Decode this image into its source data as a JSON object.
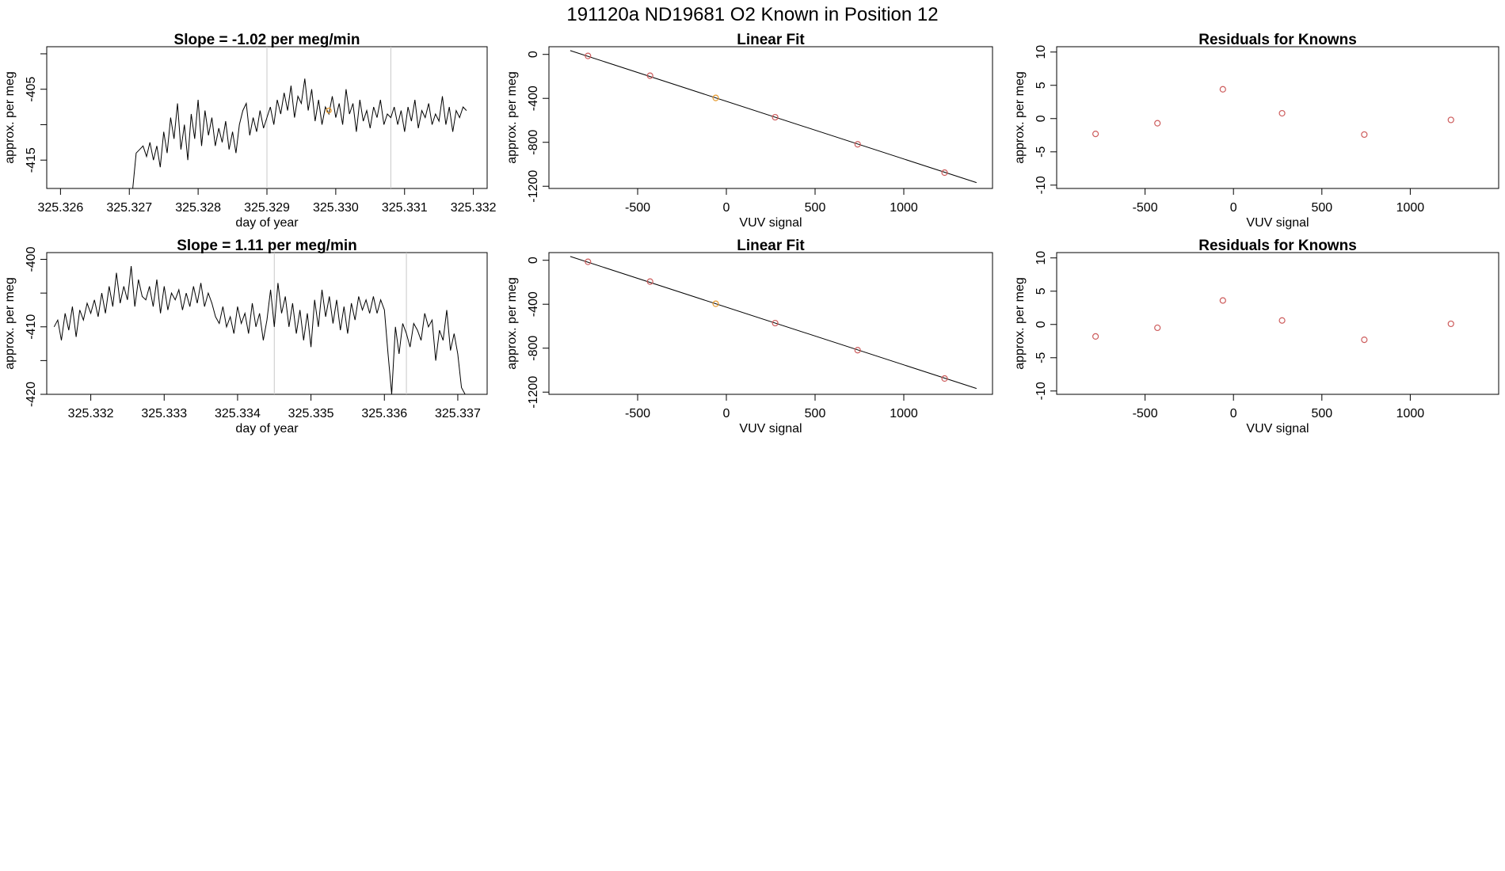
{
  "page_title": "191120a     ND19681   O2 Known in Position  12",
  "colors": {
    "trace": "#000000",
    "point": "#cd5c5c",
    "highlight": "#e69a2e",
    "marker_line": "#c8c8c8",
    "fit_line": "#000000"
  },
  "chart_data": [
    {
      "type": "line",
      "title": "Slope =  -1.02  per meg/min",
      "xlabel": "day of year",
      "ylabel": "approx. per meg",
      "xlim": [
        325.3258,
        325.3322
      ],
      "ylim": [
        -419,
        -399
      ],
      "x_ticks": [
        325.326,
        325.327,
        325.328,
        325.329,
        325.33,
        325.331,
        325.332
      ],
      "x_tick_labels": [
        "325.326",
        "325.327",
        "325.328",
        "325.329",
        "325.330",
        "325.331",
        "325.332"
      ],
      "y_ticks": [
        -415,
        -410,
        -405,
        -400
      ],
      "y_tick_labels": [
        "-415",
        "",
        "-405",
        ""
      ],
      "markers_x": [
        325.329,
        325.3308
      ],
      "highlight": {
        "x": 325.3299,
        "y": -408
      },
      "series": [
        {
          "x": [
            325.32705,
            325.3271,
            325.32715,
            325.3272,
            325.32725,
            325.3273,
            325.32735,
            325.3274,
            325.32745,
            325.3275,
            325.32755,
            325.3276,
            325.32765,
            325.3277,
            325.32775,
            325.3278,
            325.32785,
            325.3279,
            325.32795,
            325.328,
            325.32805,
            325.3281,
            325.32815,
            325.3282,
            325.32825,
            325.3283,
            325.32835,
            325.3284,
            325.32845,
            325.3285,
            325.32855,
            325.3286,
            325.32865,
            325.3287,
            325.32875,
            325.3288,
            325.32885,
            325.3289,
            325.32895,
            325.329,
            325.32905,
            325.3291,
            325.32915,
            325.3292,
            325.32925,
            325.3293,
            325.32935,
            325.3294,
            325.32945,
            325.3295,
            325.32955,
            325.3296,
            325.32965,
            325.3297,
            325.32975,
            325.3298,
            325.32985,
            325.3299,
            325.32995,
            325.33,
            325.33005,
            325.3301,
            325.33015,
            325.3302,
            325.33025,
            325.3303,
            325.33035,
            325.3304,
            325.33045,
            325.3305,
            325.33055,
            325.3306,
            325.33065,
            325.3307,
            325.33075,
            325.3308,
            325.33085,
            325.3309,
            325.33095,
            325.331,
            325.33105,
            325.3311,
            325.33115,
            325.3312,
            325.33125,
            325.3313,
            325.33135,
            325.3314,
            325.33145,
            325.3315,
            325.33155,
            325.3316,
            325.33165,
            325.3317,
            325.33175,
            325.3318,
            325.33185,
            325.3319
          ],
          "y": [
            -419,
            -414,
            -413.5,
            -413,
            -414.5,
            -412.5,
            -415,
            -413,
            -416,
            -411,
            -414,
            -409,
            -412,
            -407,
            -413.5,
            -410,
            -415,
            -408.5,
            -412,
            -406.5,
            -413,
            -408,
            -411.5,
            -409,
            -413,
            -410.5,
            -412.5,
            -409.5,
            -413.5,
            -411,
            -414,
            -410,
            -408,
            -407,
            -411.5,
            -409,
            -411,
            -408,
            -410.5,
            -409,
            -407.5,
            -410,
            -406.5,
            -408.5,
            -405.5,
            -408,
            -404.5,
            -409,
            -406,
            -407,
            -403.5,
            -408,
            -405,
            -409.5,
            -406.5,
            -410,
            -407.5,
            -408.5,
            -406,
            -409,
            -407,
            -410,
            -405,
            -408.5,
            -407,
            -411,
            -406.5,
            -409.5,
            -408,
            -410.5,
            -407.5,
            -409,
            -406.5,
            -410,
            -408.5,
            -409,
            -407.5,
            -410,
            -408,
            -411,
            -407.5,
            -409.5,
            -406.5,
            -410.5,
            -408,
            -409,
            -407,
            -410,
            -408.5,
            -409.5,
            -406,
            -410,
            -407.5,
            -411,
            -408,
            -409,
            -407.5,
            -408
          ]
        }
      ]
    },
    {
      "type": "line",
      "title": "Linear Fit",
      "xlabel": "VUV signal",
      "ylabel": "approx. per meg",
      "xlim": [
        -1000,
        1500
      ],
      "ylim": [
        -1220,
        70
      ],
      "x_ticks": [
        -500,
        0,
        500,
        1000
      ],
      "x_tick_labels": [
        "-500",
        "0",
        "500",
        "1000"
      ],
      "y_ticks": [
        0,
        -400,
        -800,
        -1200
      ],
      "y_tick_labels": [
        "0",
        "-400",
        "-800",
        "-1200"
      ],
      "fit_line": {
        "x": [
          -880,
          1410
        ],
        "y": [
          35,
          -1167
        ]
      },
      "highlight": {
        "x": -60,
        "y": -396
      },
      "series": [
        {
          "x": [
            -780,
            -430,
            -60,
            275,
            740,
            1230
          ],
          "y": [
            -14,
            -194,
            -396,
            -572,
            -818,
            -1076
          ]
        }
      ]
    },
    {
      "type": "scatter",
      "title": "Residuals for Knowns",
      "xlabel": "VUV signal",
      "ylabel": "approx. per meg",
      "xlim": [
        -1000,
        1500
      ],
      "ylim": [
        -10.5,
        10.8
      ],
      "x_ticks": [
        -500,
        0,
        500,
        1000
      ],
      "x_tick_labels": [
        "-500",
        "0",
        "500",
        "1000"
      ],
      "y_ticks": [
        10,
        5,
        0,
        -5,
        -10
      ],
      "y_tick_labels": [
        "10",
        "5",
        "0",
        "-5",
        "-10"
      ],
      "series": [
        {
          "x": [
            -780,
            -430,
            -60,
            275,
            740,
            1230
          ],
          "y": [
            -2.3,
            -0.7,
            4.4,
            0.8,
            -2.4,
            -0.2
          ]
        }
      ]
    },
    {
      "type": "line",
      "title": "Slope =  1.11  per meg/min",
      "xlabel": "day of year",
      "ylabel": "approx. per meg",
      "xlim": [
        325.3314,
        325.3374
      ],
      "ylim": [
        -420,
        -399
      ],
      "x_ticks": [
        325.332,
        325.333,
        325.334,
        325.335,
        325.336,
        325.337
      ],
      "x_tick_labels": [
        "325.332",
        "325.333",
        "325.334",
        "325.335",
        "325.336",
        "325.337"
      ],
      "y_ticks": [
        -420,
        -410,
        -400
      ],
      "y_tick_labels": [
        "-420",
        "-410",
        "-400"
      ],
      "y_minor_ticks": [
        -415,
        -405
      ],
      "markers_x": [
        325.3345,
        325.3363
      ],
      "series": [
        {
          "x": [
            325.3315,
            325.33155,
            325.3316,
            325.33165,
            325.3317,
            325.33175,
            325.3318,
            325.33185,
            325.3319,
            325.33195,
            325.332,
            325.33205,
            325.3321,
            325.33215,
            325.3322,
            325.33225,
            325.3323,
            325.33235,
            325.3324,
            325.33245,
            325.3325,
            325.33255,
            325.3326,
            325.33265,
            325.3327,
            325.33275,
            325.3328,
            325.33285,
            325.3329,
            325.33295,
            325.333,
            325.33305,
            325.3331,
            325.33315,
            325.3332,
            325.33325,
            325.3333,
            325.33335,
            325.3334,
            325.33345,
            325.3335,
            325.33355,
            325.3336,
            325.33365,
            325.3337,
            325.33375,
            325.3338,
            325.33385,
            325.3339,
            325.33395,
            325.334,
            325.33405,
            325.3341,
            325.33415,
            325.3342,
            325.33425,
            325.3343,
            325.33435,
            325.3344,
            325.33445,
            325.3345,
            325.33455,
            325.3346,
            325.33465,
            325.3347,
            325.33475,
            325.3348,
            325.33485,
            325.3349,
            325.33495,
            325.335,
            325.33505,
            325.3351,
            325.33515,
            325.3352,
            325.33525,
            325.3353,
            325.33535,
            325.3354,
            325.33545,
            325.3355,
            325.33555,
            325.3356,
            325.33565,
            325.3357,
            325.33575,
            325.3358,
            325.33585,
            325.3359,
            325.33595,
            325.336,
            325.33605,
            325.3361,
            325.33615,
            325.3362,
            325.33625,
            325.3363,
            325.33635,
            325.3364,
            325.33645,
            325.3365,
            325.33655,
            325.3366,
            325.33665,
            325.3367,
            325.33675,
            325.3368,
            325.33685,
            325.3369,
            325.33695,
            325.337,
            325.33705,
            325.3371,
            325.33715
          ],
          "y": [
            -410,
            -409,
            -412,
            -408,
            -410.5,
            -407,
            -411.5,
            -407.5,
            -409,
            -406.5,
            -408,
            -406,
            -408.5,
            -405,
            -408,
            -404,
            -407,
            -402,
            -406.5,
            -404,
            -406,
            -401,
            -407,
            -403,
            -405.5,
            -406,
            -404,
            -407,
            -403,
            -408,
            -404,
            -407.5,
            -405,
            -406,
            -404.5,
            -407.5,
            -405,
            -407,
            -404,
            -406.5,
            -403.5,
            -407,
            -405,
            -406.5,
            -408.5,
            -409.5,
            -407,
            -410,
            -408.5,
            -411,
            -407,
            -409.5,
            -408,
            -411,
            -406.5,
            -410,
            -408,
            -412,
            -409,
            -404.5,
            -410,
            -403.5,
            -408,
            -405.5,
            -410,
            -406.5,
            -411,
            -407.5,
            -412,
            -408,
            -413,
            -406,
            -410,
            -404.5,
            -408.5,
            -405.5,
            -409.5,
            -406,
            -410.5,
            -407,
            -411,
            -406.5,
            -409,
            -405.5,
            -407.5,
            -406,
            -408,
            -405.5,
            -408,
            -406,
            -407.5,
            -414,
            -420,
            -410,
            -414,
            -409.5,
            -411,
            -413,
            -409.5,
            -410.5,
            -412,
            -408,
            -410,
            -409,
            -415,
            -410.5,
            -412,
            -407.5,
            -413.5,
            -411,
            -414,
            -419,
            -420,
            -420
          ]
        }
      ]
    },
    {
      "type": "line",
      "title": "Linear Fit",
      "xlabel": "VUV signal",
      "ylabel": "approx. per meg",
      "xlim": [
        -1000,
        1500
      ],
      "ylim": [
        -1220,
        70
      ],
      "x_ticks": [
        -500,
        0,
        500,
        1000
      ],
      "x_tick_labels": [
        "-500",
        "0",
        "500",
        "1000"
      ],
      "y_ticks": [
        0,
        -400,
        -800,
        -1200
      ],
      "y_tick_labels": [
        "0",
        "-400",
        "-800",
        "-1200"
      ],
      "fit_line": {
        "x": [
          -880,
          1410
        ],
        "y": [
          35,
          -1167
        ]
      },
      "highlight": {
        "x": -60,
        "y": -396
      },
      "series": [
        {
          "x": [
            -780,
            -430,
            -60,
            275,
            740,
            1230
          ],
          "y": [
            -14,
            -194,
            -396,
            -572,
            -818,
            -1076
          ]
        }
      ]
    },
    {
      "type": "scatter",
      "title": "Residuals for Knowns",
      "xlabel": "VUV signal",
      "ylabel": "approx. per meg",
      "xlim": [
        -1000,
        1500
      ],
      "ylim": [
        -10.5,
        10.8
      ],
      "x_ticks": [
        -500,
        0,
        500,
        1000
      ],
      "x_tick_labels": [
        "-500",
        "0",
        "500",
        "1000"
      ],
      "y_ticks": [
        10,
        5,
        0,
        -5,
        -10
      ],
      "y_tick_labels": [
        "10",
        "5",
        "0",
        "-5",
        "-10"
      ],
      "series": [
        {
          "x": [
            -780,
            -430,
            -60,
            275,
            740,
            1230
          ],
          "y": [
            -1.8,
            -0.5,
            3.6,
            0.6,
            -2.3,
            0.1
          ]
        }
      ]
    }
  ]
}
